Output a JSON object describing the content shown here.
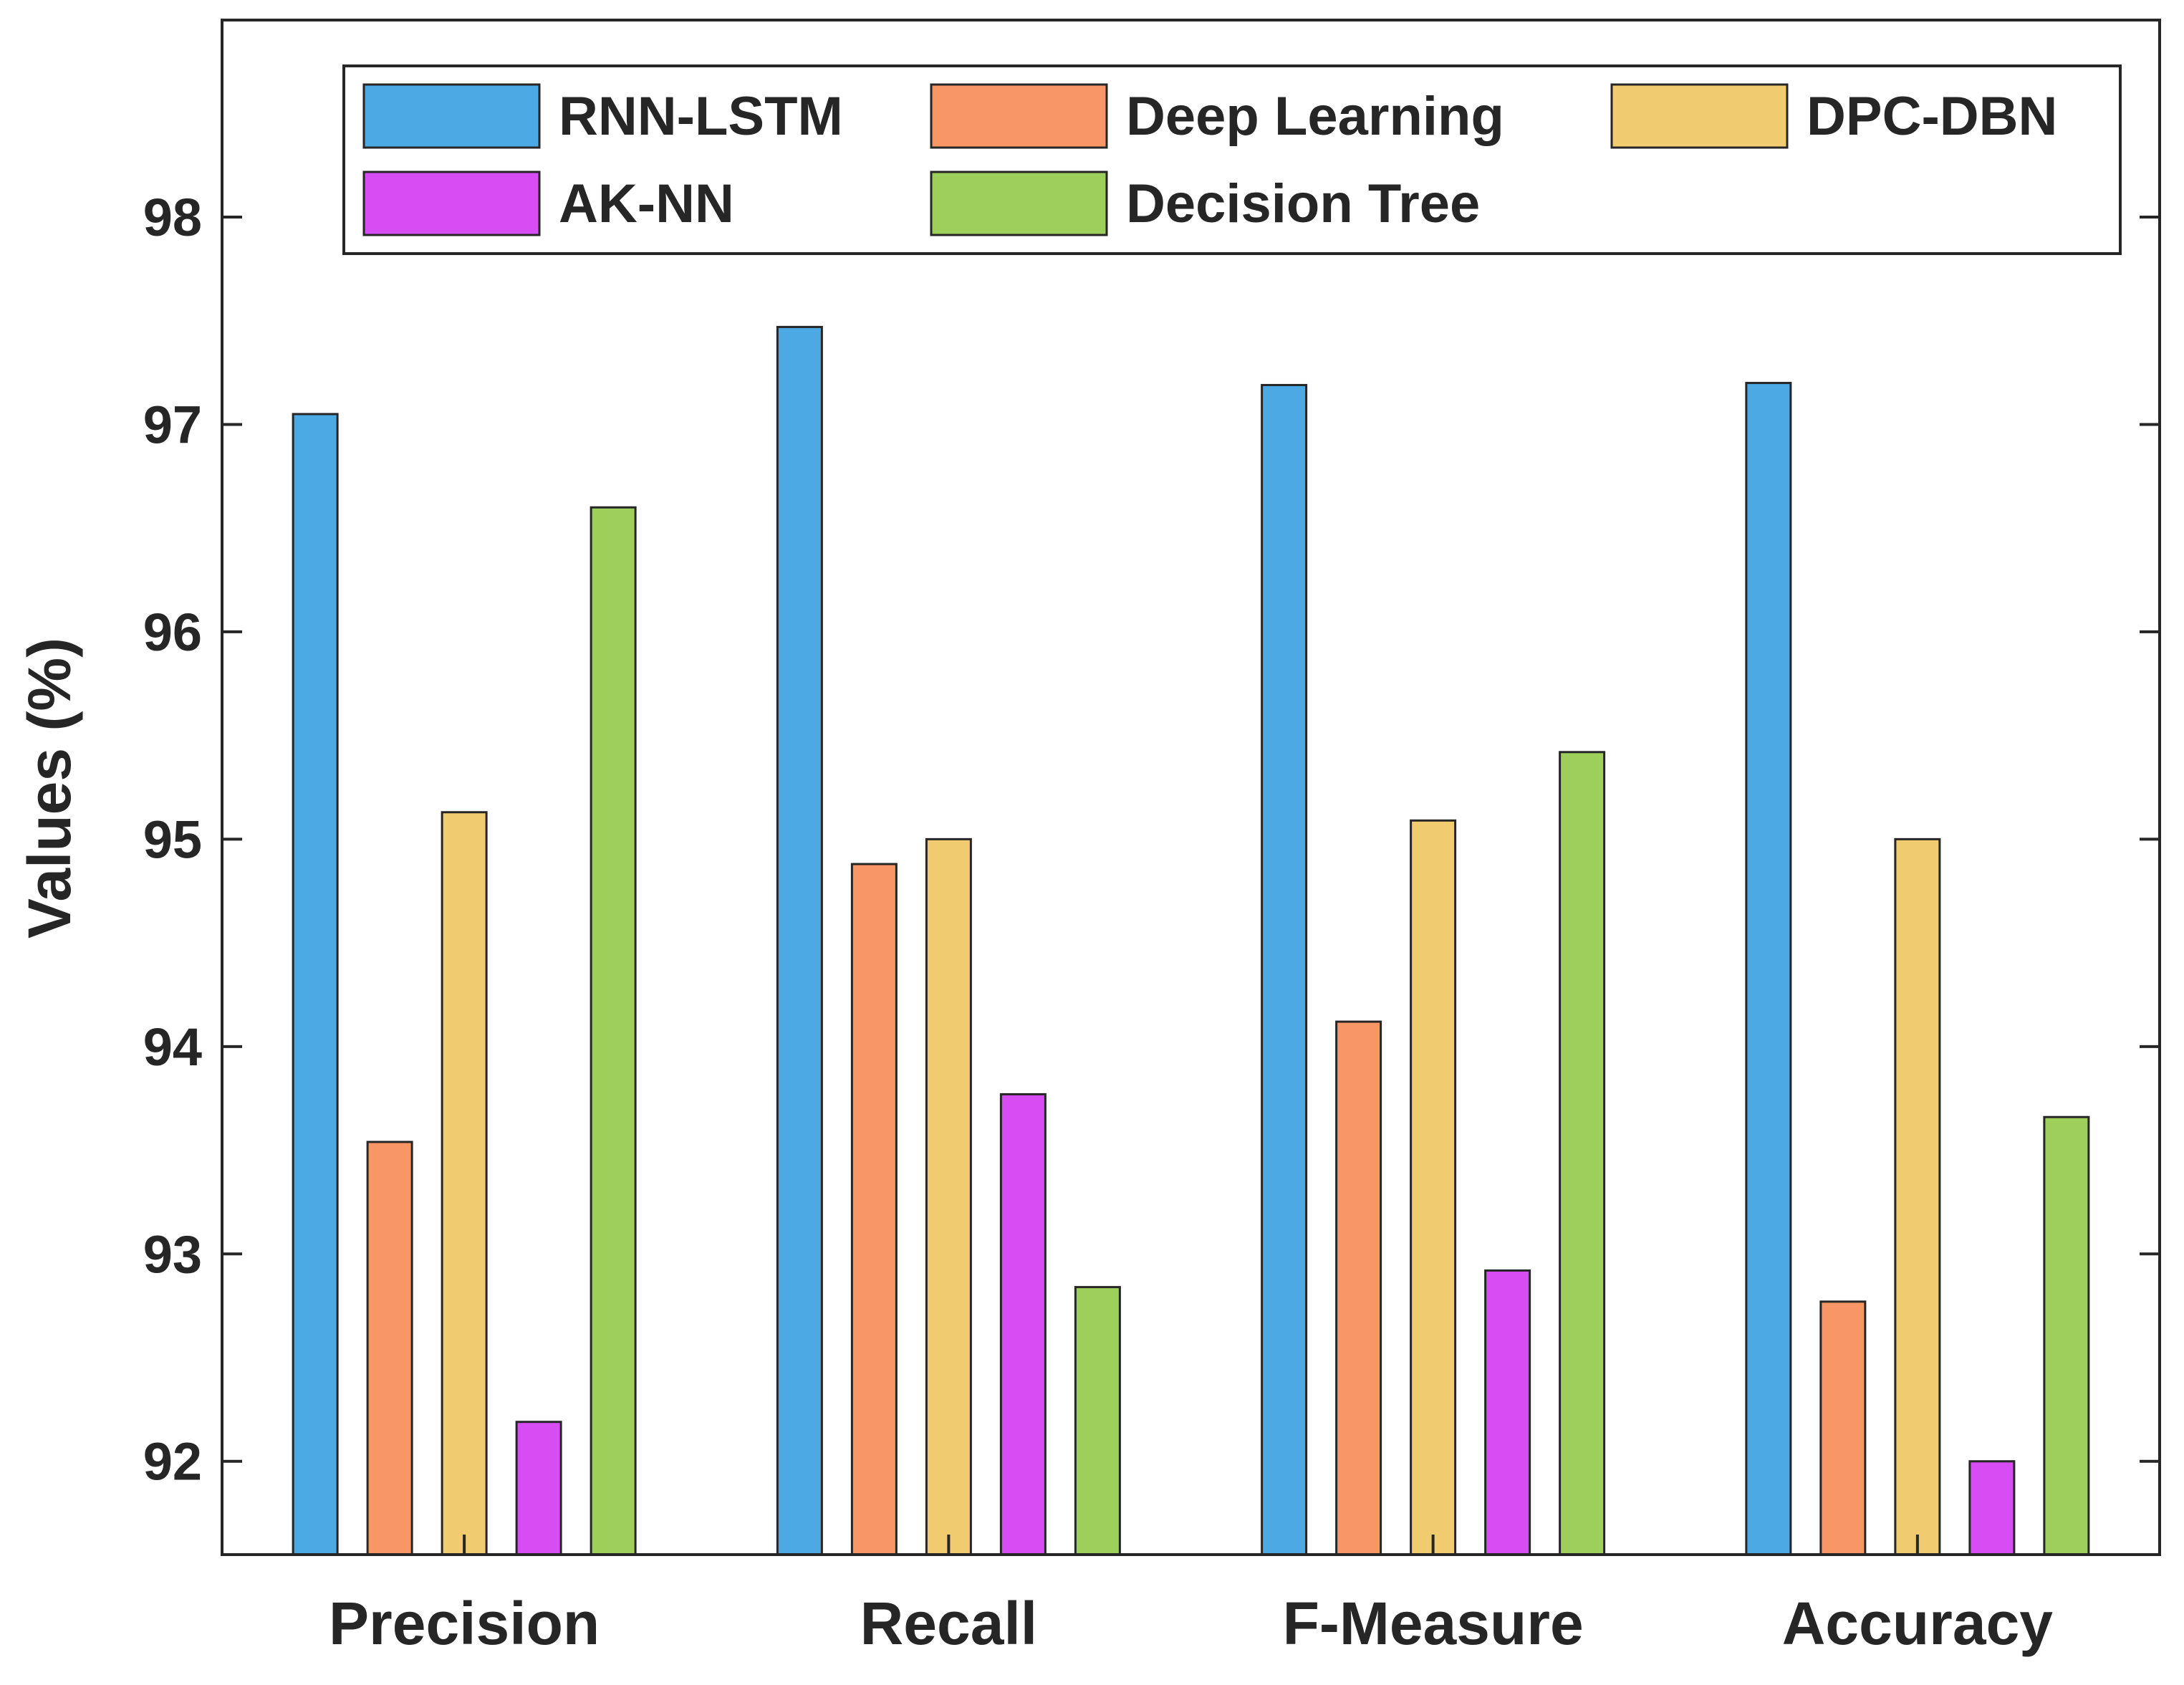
{
  "chart_data": {
    "type": "bar",
    "title": "",
    "xlabel": "",
    "ylabel": "Values (%)",
    "ylim": [
      91.55,
      98.95
    ],
    "yticks": [
      92,
      93,
      94,
      95,
      96,
      97,
      98
    ],
    "grid": false,
    "legend_position": "top-right",
    "categories": [
      "Precision",
      "Recall",
      "F-Measure",
      "Accuracy"
    ],
    "series": [
      {
        "name": "RNN-LSTM",
        "color": "#4DA9E4",
        "values": [
          97.05,
          97.47,
          97.19,
          97.2
        ]
      },
      {
        "name": "Deep Learning",
        "color": "#F99666",
        "values": [
          93.54,
          94.88,
          94.12,
          92.77
        ]
      },
      {
        "name": "DPC-DBN",
        "color": "#F1CB6F",
        "values": [
          95.13,
          95.0,
          95.09,
          95.0
        ]
      },
      {
        "name": "AK-NN",
        "color": "#D84CF4",
        "values": [
          92.19,
          93.77,
          92.92,
          92.0
        ]
      },
      {
        "name": "Decision Tree",
        "color": "#9ECF5B",
        "values": [
          96.6,
          92.84,
          95.42,
          93.66
        ]
      }
    ]
  }
}
